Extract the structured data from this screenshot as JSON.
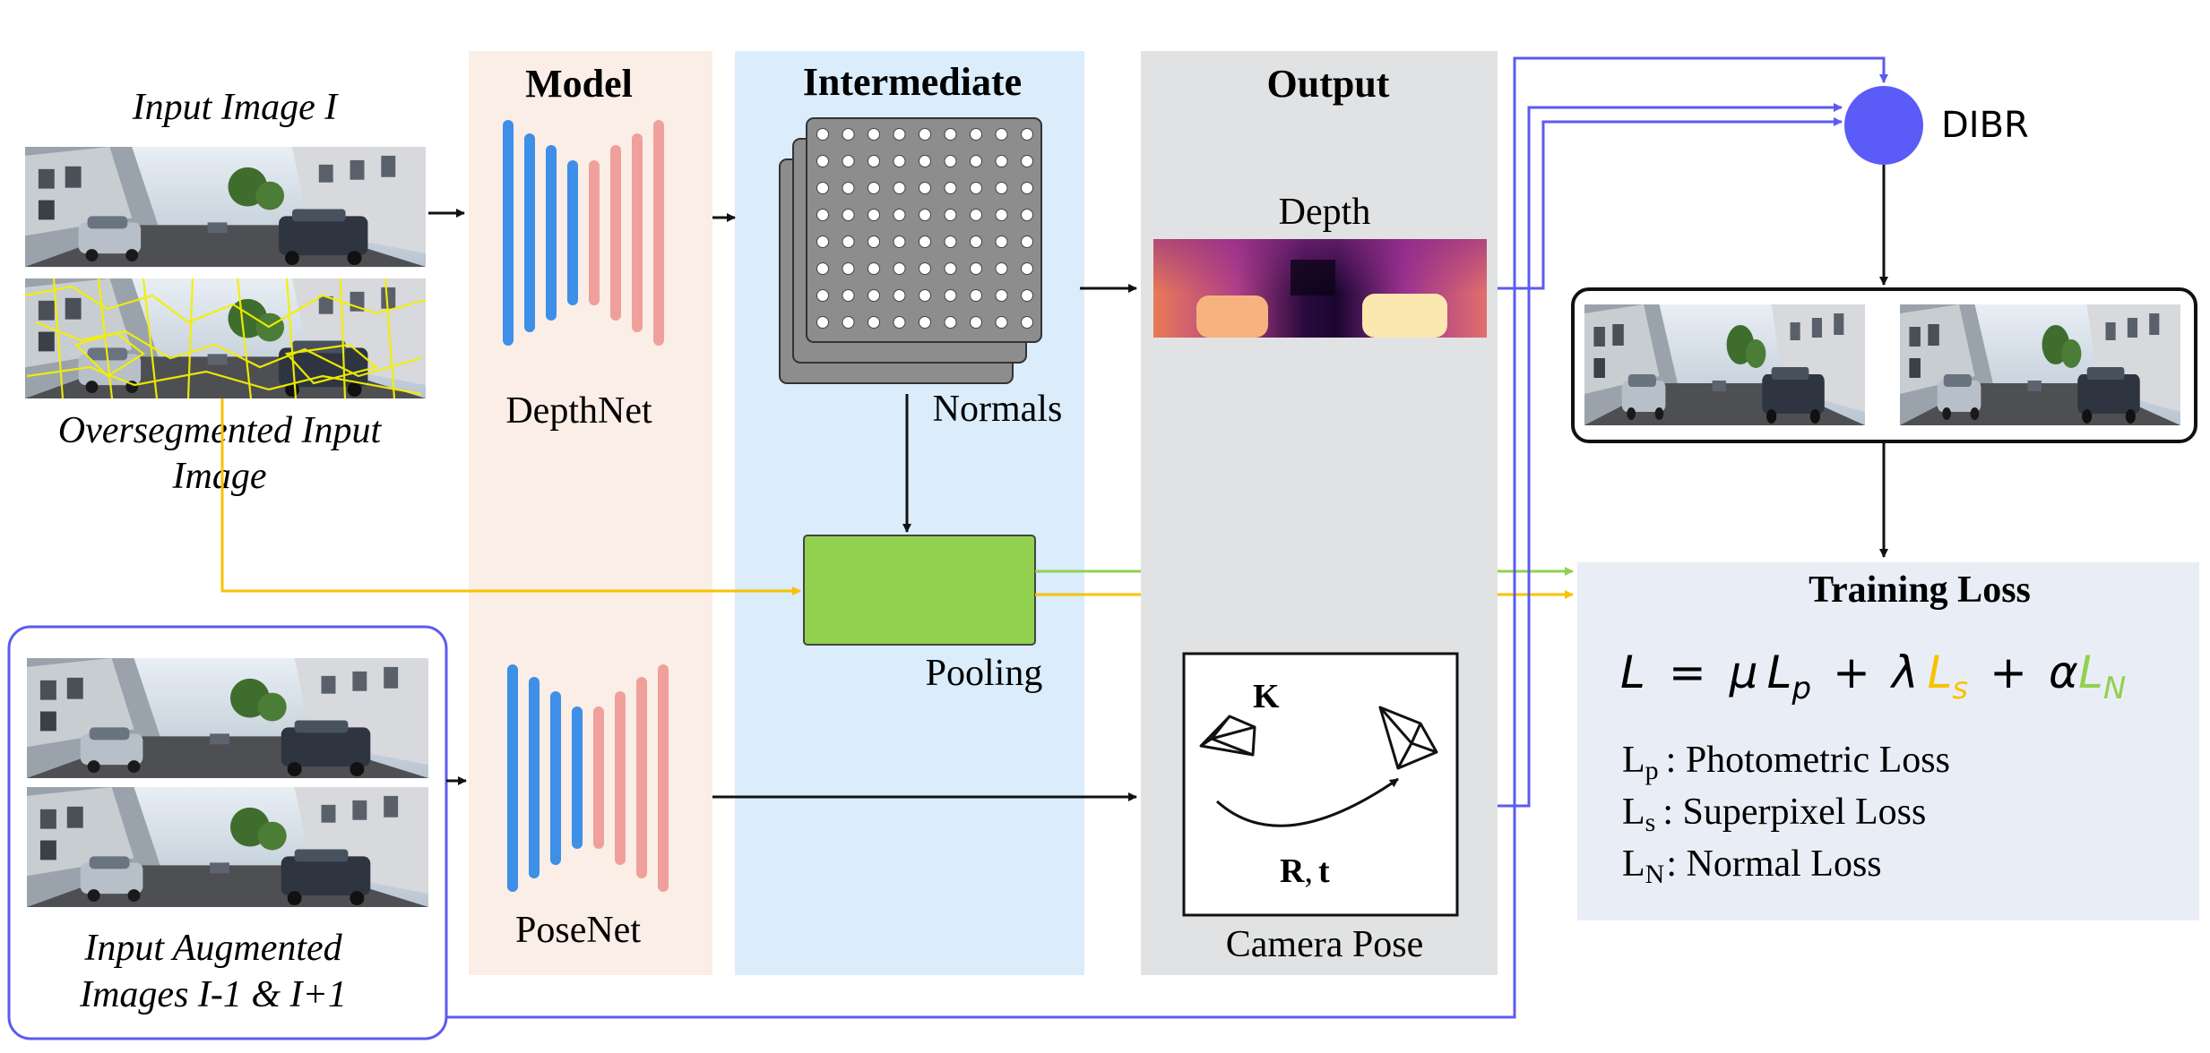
{
  "columns": {
    "model": "Model",
    "intermediate": "Intermediate",
    "output": "Output"
  },
  "input": {
    "image_label": "Input Image I",
    "overseg_label_line1": "Oversegmented Input",
    "overseg_label_line2": "Image",
    "augmented_label_line1": "Input Augmented",
    "augmented_label_line2": "Images I-1 & I+1"
  },
  "networks": {
    "depthnet": "DepthNet",
    "posenet": "PoseNet"
  },
  "intermediate": {
    "normals": "Normals",
    "pooling": "Pooling"
  },
  "output": {
    "depth": "Depth",
    "camera_pose": "Camera Pose",
    "K": "K",
    "R": "R",
    "comma": ",",
    "t": "t"
  },
  "dibr": "DIBR",
  "loss": {
    "title": "Training Loss",
    "equation": {
      "L": "L",
      "eq": "=",
      "mu": "μ",
      "Lp": "L",
      "p": "p",
      "plus1": "+",
      "lambda": "λ",
      "Ls": "L",
      "s": "s",
      "plus2": "+",
      "alpha": "α",
      "LN": "L",
      "N": "N"
    },
    "legend": [
      {
        "sym": "L",
        "sub": "p",
        "text": ": Photometric Loss"
      },
      {
        "sym": "L",
        "sub": "s",
        "text": ": Superpixel Loss"
      },
      {
        "sym": "L",
        "sub": "N",
        "text": ": Normal Loss"
      }
    ]
  },
  "colors": {
    "model_bg": "#fbeee6",
    "intermediate_bg": "#dbecfb",
    "output_bg": "#e1e2e3",
    "loss_bg": "#e9eef6",
    "encoder_blue": "#3d8fe8",
    "decoder_red": "#f0a09b",
    "pooling_green": "#92d050",
    "superpixel_yellow": "#f7c300",
    "flow_purple": "#5b5bf0",
    "dibr_circle": "#5b5bf7"
  }
}
